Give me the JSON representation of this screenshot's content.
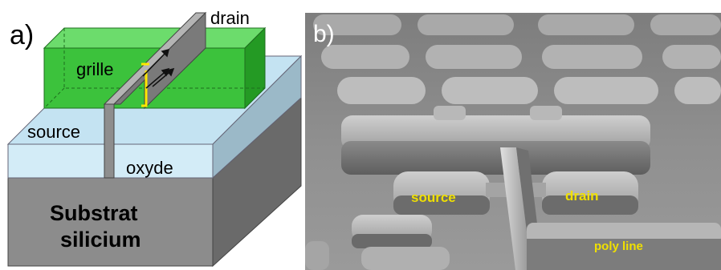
{
  "panel_a": {
    "tag": "a)",
    "labels": {
      "drain": "drain",
      "grille": "grille",
      "source": "source",
      "oxyde": "oxyde",
      "substrat_line1": "Substrat",
      "substrat_line2": "silicium"
    },
    "colors": {
      "gate_front": "#3cc23c",
      "gate_top": "#6cdc6c",
      "gate_side": "#249a24",
      "oxide_front": "#d3ecf7",
      "oxide_top": "#c4e3f2",
      "oxide_side": "#9bb9c8",
      "substrate_front": "#8c8c8c",
      "substrate_top": "#a8a8a8",
      "substrate_side": "#6a6a6a",
      "fin": "#8e8e8e",
      "channel": "#ffe800"
    }
  },
  "panel_b": {
    "tag": "b)",
    "labels": {
      "source": "source",
      "drain": "drain",
      "poly_line": "poly line"
    },
    "colors": {
      "label": "#f0e000",
      "background": "#8a8a8a"
    }
  }
}
